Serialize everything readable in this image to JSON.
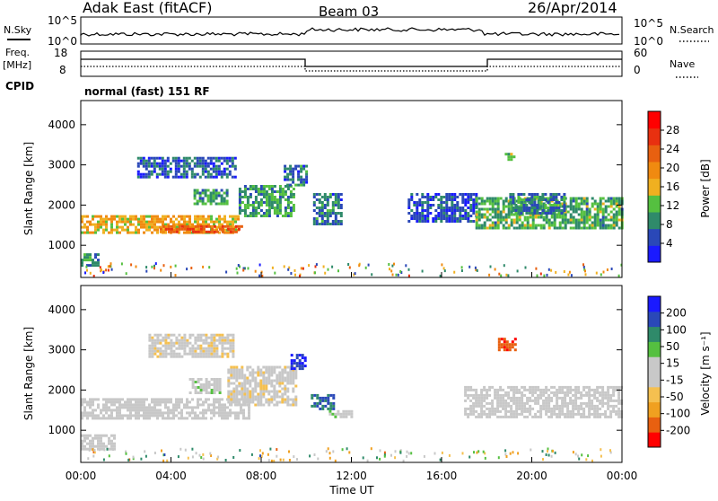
{
  "header": {
    "station": "Adak East (fitACF)",
    "beam": "Beam 03",
    "date": "26/Apr/2014"
  },
  "top_panels": {
    "nsky_label": "N.Sky",
    "nsky_ticks": [
      "10^5",
      "10^0"
    ],
    "nsearch_label": "N.Search",
    "nsearch_ticks": [
      "10^5",
      "10^0"
    ],
    "freq_label": "Freq.",
    "freq_unit": "[MHz]",
    "freq_ticks": [
      "18",
      "8"
    ],
    "nave_label": "Nave",
    "nave_ticks": [
      "60",
      "0"
    ],
    "cpid_label": "CPID",
    "cpid_value": "normal (fast) 151 RF"
  },
  "colors": {
    "power_scale": [
      "#1a1aff",
      "#2a48b8",
      "#2f8a6a",
      "#55c040",
      "#f0b020",
      "#f08a10",
      "#e86010",
      "#e83010",
      "#ff0000"
    ],
    "velocity_scale": [
      "#ff0000",
      "#e86010",
      "#f0a020",
      "#f5c050",
      "#c8c8c8",
      "#c8c8c8",
      "#55c040",
      "#2f8a6a",
      "#2a48b8",
      "#1a1aff"
    ]
  },
  "chart_data": [
    {
      "type": "heatmap",
      "name": "power",
      "ylabel": "Slant Range [km]",
      "xlabel": "",
      "ylim": [
        200,
        4600
      ],
      "yticks": [
        "1000",
        "2000",
        "3000",
        "4000"
      ],
      "colorbar_label": "Power [dB]",
      "colorbar_ticks": [
        "4",
        "8",
        "12",
        "16",
        "20",
        "24",
        "28"
      ],
      "clim": [
        0,
        32
      ],
      "regions": [
        {
          "t0": 0.0,
          "t1": 7.0,
          "r0": 1300,
          "r1": 1750,
          "level": 17
        },
        {
          "t0": 0.0,
          "t1": 0.8,
          "r0": 500,
          "r1": 800,
          "level": 9
        },
        {
          "t0": 3.5,
          "t1": 7.2,
          "r0": 1300,
          "r1": 1500,
          "level": 24
        },
        {
          "t0": 2.5,
          "t1": 6.8,
          "r0": 2700,
          "r1": 3200,
          "level": 6
        },
        {
          "t0": 5.0,
          "t1": 6.5,
          "r0": 2000,
          "r1": 2400,
          "level": 10
        },
        {
          "t0": 7.0,
          "t1": 9.5,
          "r0": 1700,
          "r1": 2500,
          "level": 10
        },
        {
          "t0": 9.0,
          "t1": 10.0,
          "r0": 2500,
          "r1": 3000,
          "level": 7
        },
        {
          "t0": 10.3,
          "t1": 11.5,
          "r0": 1500,
          "r1": 2300,
          "level": 7
        },
        {
          "t0": 14.5,
          "t1": 17.5,
          "r0": 1600,
          "r1": 2300,
          "level": 5
        },
        {
          "t0": 17.5,
          "t1": 24.0,
          "r0": 1400,
          "r1": 2200,
          "level": 11
        },
        {
          "t0": 19.0,
          "t1": 21.5,
          "r0": 1800,
          "r1": 2300,
          "level": 8
        },
        {
          "t0": 18.8,
          "t1": 19.2,
          "r0": 3100,
          "r1": 3300,
          "level": 14
        }
      ]
    },
    {
      "type": "heatmap",
      "name": "velocity",
      "ylabel": "Slant Range [km]",
      "xlabel": "Time UT",
      "ylim": [
        200,
        4600
      ],
      "yticks": [
        "1000",
        "2000",
        "3000",
        "4000"
      ],
      "xticks": [
        "00:00",
        "04:00",
        "08:00",
        "12:00",
        "16:00",
        "20:00",
        "00:00"
      ],
      "xlim": [
        0,
        24
      ],
      "colorbar_label": "Velocity [m s⁻¹]",
      "colorbar_ticks": [
        "-200",
        "-100",
        "-50",
        "-15",
        "15",
        "50",
        "100",
        "200"
      ],
      "regions": [
        {
          "t0": 0.0,
          "t1": 7.5,
          "r0": 1300,
          "r1": 1800,
          "vel": 0
        },
        {
          "t0": 0.0,
          "t1": 1.5,
          "r0": 500,
          "r1": 900,
          "vel": 0
        },
        {
          "t0": 3.0,
          "t1": 6.8,
          "r0": 2800,
          "r1": 3400,
          "vel": -40
        },
        {
          "t0": 4.8,
          "t1": 6.2,
          "r0": 1900,
          "r1": 2300,
          "vel": 40
        },
        {
          "t0": 6.5,
          "t1": 9.5,
          "r0": 1600,
          "r1": 2600,
          "vel": -40
        },
        {
          "t0": 9.3,
          "t1": 10.0,
          "r0": 2500,
          "r1": 2900,
          "vel": 200
        },
        {
          "t0": 10.2,
          "t1": 11.2,
          "r0": 1500,
          "r1": 1900,
          "vel": 150
        },
        {
          "t0": 11.0,
          "t1": 12.0,
          "r0": 1300,
          "r1": 1500,
          "vel": 40
        },
        {
          "t0": 17.0,
          "t1": 24.0,
          "r0": 1300,
          "r1": 2100,
          "vel": 0
        },
        {
          "t0": 18.5,
          "t1": 19.3,
          "r0": 3000,
          "r1": 3300,
          "vel": -200
        }
      ]
    }
  ]
}
